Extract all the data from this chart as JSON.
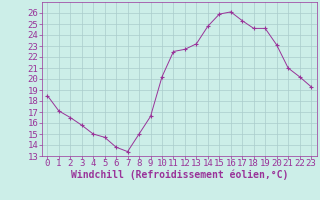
{
  "x": [
    0,
    1,
    2,
    3,
    4,
    5,
    6,
    7,
    8,
    9,
    10,
    11,
    12,
    13,
    14,
    15,
    16,
    17,
    18,
    19,
    20,
    21,
    22,
    23
  ],
  "y": [
    18.5,
    17.1,
    16.5,
    15.8,
    15.0,
    14.7,
    13.8,
    13.4,
    15.0,
    16.6,
    20.2,
    22.5,
    22.7,
    23.2,
    24.8,
    25.9,
    26.1,
    25.3,
    24.6,
    24.6,
    23.1,
    21.0,
    20.2,
    19.3
  ],
  "line_color": "#993399",
  "marker": "+",
  "marker_color": "#993399",
  "bg_color": "#cceee8",
  "grid_color": "#aacccc",
  "xlabel": "Windchill (Refroidissement éolien,°C)",
  "xlabel_color": "#993399",
  "xlabel_fontsize": 7,
  "tick_color": "#993399",
  "tick_fontsize": 6.5,
  "ylim": [
    13,
    27
  ],
  "xlim": [
    -0.5,
    23.5
  ],
  "yticks": [
    13,
    14,
    15,
    16,
    17,
    18,
    19,
    20,
    21,
    22,
    23,
    24,
    25,
    26
  ],
  "xticks": [
    0,
    1,
    2,
    3,
    4,
    5,
    6,
    7,
    8,
    9,
    10,
    11,
    12,
    13,
    14,
    15,
    16,
    17,
    18,
    19,
    20,
    21,
    22,
    23
  ]
}
